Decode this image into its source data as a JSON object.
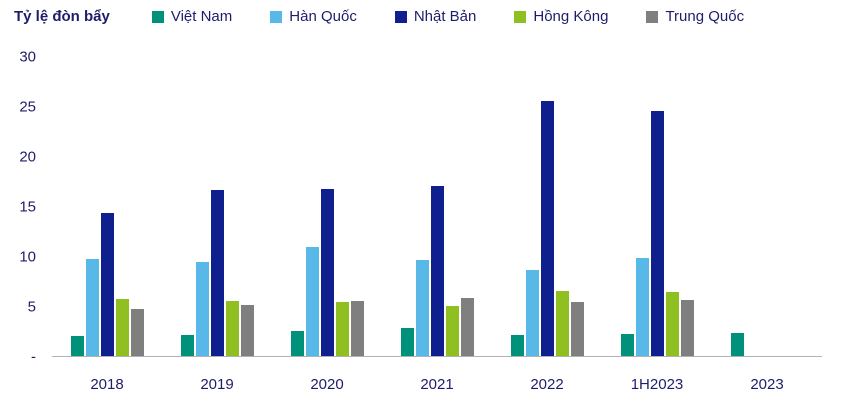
{
  "chart_data": {
    "type": "bar",
    "title": "Tỷ lệ đòn bẩy",
    "categories": [
      "2018",
      "2019",
      "2020",
      "2021",
      "2022",
      "1H2023",
      "2023"
    ],
    "series": [
      {
        "name": "Việt Nam",
        "color": "#00917b",
        "values": [
          2.0,
          2.1,
          2.5,
          2.8,
          2.1,
          2.2,
          2.3
        ]
      },
      {
        "name": "Hàn Quốc",
        "color": "#58b8e8",
        "values": [
          9.7,
          9.4,
          10.9,
          9.6,
          8.6,
          9.8,
          null
        ]
      },
      {
        "name": "Nhật Bản",
        "color": "#101f8e",
        "values": [
          14.3,
          16.7,
          16.8,
          17.1,
          25.6,
          24.6,
          null
        ]
      },
      {
        "name": "Hồng Kông",
        "color": "#90bf22",
        "values": [
          5.7,
          5.5,
          5.4,
          5.0,
          6.5,
          6.4,
          null
        ]
      },
      {
        "name": "Trung Quốc",
        "color": "#7f7f7f",
        "values": [
          4.7,
          5.1,
          5.5,
          5.8,
          5.4,
          5.6,
          null
        ]
      }
    ],
    "xlabel": "",
    "ylabel": "",
    "ylim": [
      0,
      30
    ],
    "yticks": [
      {
        "value": 0,
        "label": "-"
      },
      {
        "value": 5,
        "label": "5"
      },
      {
        "value": 10,
        "label": "10"
      },
      {
        "value": 15,
        "label": "15"
      },
      {
        "value": 20,
        "label": "20"
      },
      {
        "value": 25,
        "label": "25"
      },
      {
        "value": 30,
        "label": "30"
      }
    ],
    "grid": false,
    "legend_position": "top"
  },
  "colors": {
    "text": "#1f1d6b",
    "axis_line": "#b3b3b3",
    "background": "#ffffff"
  }
}
